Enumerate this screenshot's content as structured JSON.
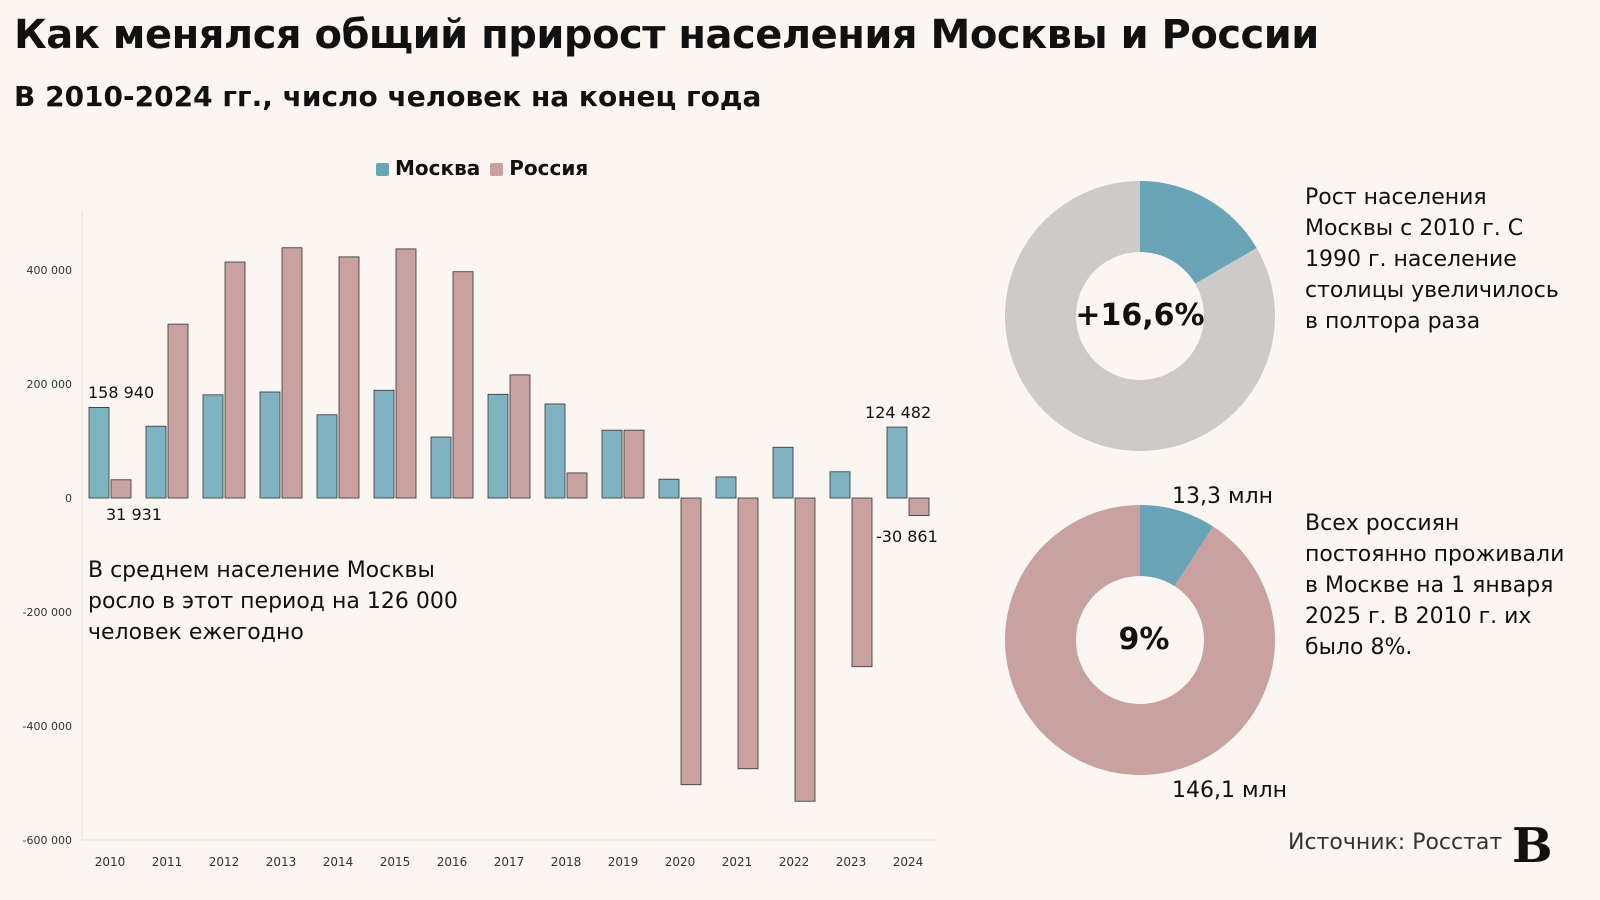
{
  "title": "Как менялся общий прирост населения Москвы и России",
  "subtitle": "В 2010-2024 гг., число человек на конец года",
  "colors": {
    "moscow": "#80b3c1",
    "russia": "#c9a1a1",
    "moscow_pie": "#6aa5b7",
    "grey_pie": "#cccbc9",
    "background": "#fbf6f1"
  },
  "chart_data": [
    {
      "type": "bar",
      "categories": [
        "2010",
        "2011",
        "2012",
        "2013",
        "2014",
        "2015",
        "2016",
        "2017",
        "2018",
        "2019",
        "2020",
        "2021",
        "2022",
        "2023",
        "2024"
      ],
      "series": [
        {
          "name": "Москва",
          "values": [
            158940,
            126000,
            181000,
            186000,
            146000,
            189000,
            107000,
            182000,
            165000,
            119000,
            33000,
            37000,
            89000,
            46000,
            124482
          ]
        },
        {
          "name": "Россия",
          "values": [
            31931,
            305000,
            414000,
            439000,
            423000,
            437000,
            397000,
            216000,
            44000,
            119000,
            -503000,
            -475000,
            -532000,
            -296000,
            -30861
          ]
        }
      ],
      "ylim": [
        -600000,
        450000
      ],
      "yticks": [
        {
          "v": 400000,
          "label": "400 000"
        },
        {
          "v": 200000,
          "label": "200 000"
        },
        {
          "v": 0,
          "label": "0"
        },
        {
          "v": -200000,
          "label": "-200 000"
        },
        {
          "v": -400000,
          "label": "-400 000"
        },
        {
          "v": -600000,
          "label": "-600 000"
        }
      ],
      "data_labels": [
        {
          "text": "158 940"
        },
        {
          "text": "31 931"
        },
        {
          "text": "124 482"
        },
        {
          "text": "-30 861"
        }
      ],
      "legend": "top",
      "annotation": "В среднем население Москвы росло в этот период на 126 000 человек ежегодно"
    },
    {
      "type": "pie",
      "center_label": "+16,6%",
      "values": [
        16.6,
        83.4
      ],
      "text": "Рост населения Москвы с 2010 г. С 1990 г. население столицы увеличилось в полтора раза"
    },
    {
      "type": "pie",
      "center_label": "9%",
      "labels": [
        "13,3 млн",
        "146,1 млн"
      ],
      "values": [
        13.3,
        132.8
      ],
      "text": "Всех россиян постоянно проживали в Москве на 1 января 2025 г. В 2010 г. их было 8%."
    }
  ],
  "source": "Источник: Росстат",
  "logo": "В"
}
